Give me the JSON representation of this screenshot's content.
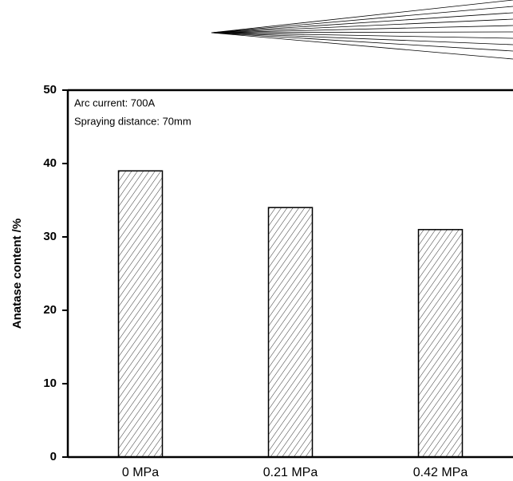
{
  "chart_data": {
    "type": "bar",
    "y_label": "Anatase content /%",
    "annotations": [
      "Arc current: 700A",
      "Spraying distance: 70mm"
    ],
    "categories": [
      "0 MPa",
      "0.21 MPa",
      "0.42 MPa"
    ],
    "values": [
      39,
      34,
      31
    ],
    "ylim": [
      0,
      50
    ],
    "yticks": [
      0,
      10,
      20,
      30,
      40,
      50
    ]
  }
}
